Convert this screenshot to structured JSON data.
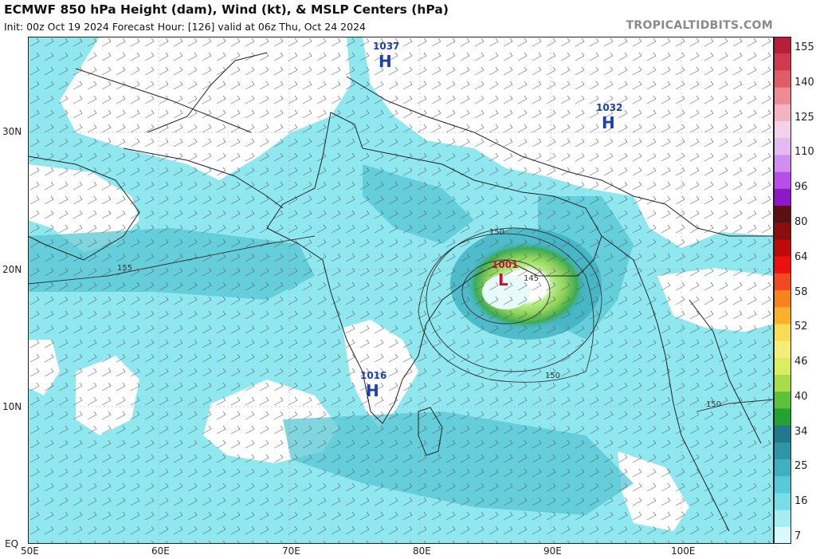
{
  "header": {
    "title": "ECMWF 850 hPa Height (dam), Wind (kt), & MSLP Centers (hPa)",
    "subtitle": "Init: 00z Oct 19 2024   Forecast Hour: [126]   valid at 06z Thu, Oct 24 2024",
    "brand": "TROPICALTIDBITS.COM"
  },
  "axes": {
    "lat_labels": [
      "30N",
      "20N",
      "10N",
      "EQ"
    ],
    "lon_labels": [
      "50E",
      "60E",
      "70E",
      "80E",
      "90E",
      "100E"
    ]
  },
  "pressure_centers": [
    {
      "kind": "H",
      "value": "1037",
      "color": "#1a3fb0"
    },
    {
      "kind": "H",
      "value": "1032",
      "color": "#1a3fb0"
    },
    {
      "kind": "H",
      "value": "1016",
      "color": "#1a3fb0"
    },
    {
      "kind": "L",
      "value": "1001",
      "color": "#c8102e"
    }
  ],
  "height_contour_labels": [
    "150",
    "155",
    "145",
    "150",
    "150"
  ],
  "colorbar": {
    "labels": [
      "155",
      "140",
      "125",
      "110",
      "96",
      "80",
      "64",
      "58",
      "52",
      "46",
      "40",
      "34",
      "25",
      "16",
      "7"
    ],
    "colors": [
      "#b81e3c",
      "#d03a4e",
      "#e05c68",
      "#ee8a96",
      "#f3b3c4",
      "#f2d2ea",
      "#e4b8f0",
      "#cf8ef0",
      "#b64fe8",
      "#8d18c8",
      "#5a1010",
      "#8a0e0e",
      "#c00a0a",
      "#ee1010",
      "#f24a1e",
      "#f7821e",
      "#fbb22a",
      "#f8dc56",
      "#f2ee78",
      "#d8ee60",
      "#a8dc4a",
      "#5cc23a",
      "#24a230",
      "#1f7a8c",
      "#2e94a8",
      "#3fb0c2",
      "#56cad8",
      "#78dde6",
      "#a4eef2",
      "#d8fafc"
    ]
  }
}
